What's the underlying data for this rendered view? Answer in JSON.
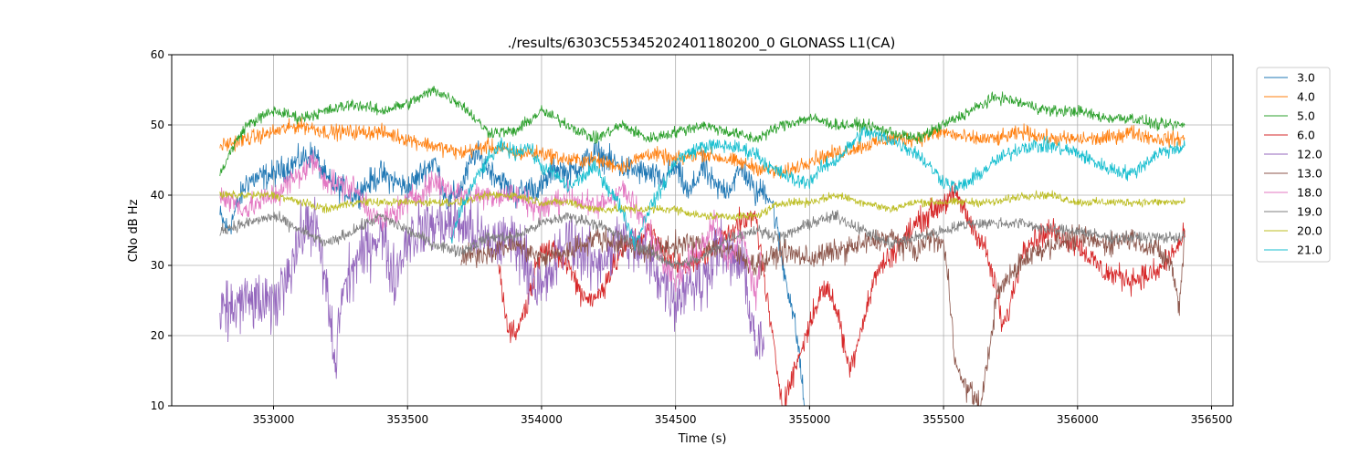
{
  "chart_data": {
    "type": "line",
    "title": "./results/6303C55345202401180200_0 GLONASS L1(CA)",
    "xlabel": "Time (s)",
    "ylabel": "CNo dB Hz",
    "xlim": [
      352620,
      356580
    ],
    "ylim": [
      10,
      60
    ],
    "xticks": [
      353000,
      353500,
      354000,
      354500,
      355000,
      355500,
      356000,
      356500
    ],
    "yticks": [
      10,
      20,
      30,
      40,
      50,
      60
    ],
    "grid": true,
    "legend_position": "right",
    "series": [
      {
        "name": "3.0",
        "color": "#1f77b4",
        "noise": 1.6,
        "x": [
          352800,
          352830,
          352900,
          353000,
          353100,
          353150,
          353200,
          353300,
          353400,
          353500,
          353600,
          353650,
          353700,
          353750,
          353800,
          353850,
          353900,
          353950,
          354000,
          354050,
          354100,
          354200,
          354300,
          354400,
          354450,
          354500,
          354550,
          354600,
          354650,
          354700,
          354750,
          354800,
          354830,
          354860,
          354880,
          354900,
          354930,
          354960,
          354980
        ],
        "y": [
          37,
          35,
          42,
          43,
          45,
          46,
          42,
          40,
          43,
          41,
          45,
          39,
          41,
          46,
          44,
          42,
          40,
          41,
          41,
          44,
          43,
          46,
          44,
          43,
          42,
          44,
          40,
          44,
          41,
          41,
          44,
          40,
          41,
          39,
          35,
          30,
          25,
          18,
          10
        ]
      },
      {
        "name": "4.0",
        "color": "#ff7f0e",
        "noise": 0.9,
        "x": [
          352800,
          352900,
          353000,
          353100,
          353200,
          353300,
          353400,
          353500,
          353600,
          353700,
          353800,
          353900,
          354000,
          354100,
          354200,
          354300,
          354400,
          354500,
          354600,
          354700,
          354800,
          354900,
          355000,
          355100,
          355200,
          355300,
          355400,
          355500,
          355600,
          355700,
          355800,
          355900,
          356000,
          356100,
          356200,
          356300,
          356400
        ],
        "y": [
          47,
          48,
          49,
          50,
          49,
          49,
          49,
          48,
          47,
          46,
          47,
          46,
          46,
          45,
          45,
          44,
          46,
          45,
          46,
          45,
          44,
          43,
          45,
          46,
          47,
          48,
          48,
          49,
          48,
          48,
          49,
          48,
          48,
          48,
          49,
          48,
          48
        ]
      },
      {
        "name": "5.0",
        "color": "#2ca02c",
        "noise": 0.7,
        "x": [
          352800,
          352850,
          352900,
          353000,
          353100,
          353200,
          353300,
          353400,
          353500,
          353600,
          353700,
          353800,
          353900,
          354000,
          354100,
          354200,
          354300,
          354400,
          354500,
          354600,
          354700,
          354800,
          354900,
          355000,
          355100,
          355200,
          355300,
          355400,
          355500,
          355600,
          355700,
          355800,
          355900,
          356000,
          356100,
          356200,
          356300,
          356400
        ],
        "y": [
          43,
          47,
          50,
          52,
          51,
          52,
          53,
          52,
          53,
          55,
          53,
          49,
          49,
          52,
          50,
          48,
          50,
          48,
          49,
          50,
          49,
          48,
          50,
          51,
          50,
          50,
          49,
          48,
          50,
          52,
          54,
          53,
          52,
          52,
          51,
          51,
          50,
          50
        ]
      },
      {
        "name": "6.0",
        "color": "#d62728",
        "noise": 1.5,
        "x": [
          353840,
          353870,
          353900,
          353950,
          354000,
          354100,
          354150,
          354200,
          354300,
          354400,
          354500,
          354600,
          354700,
          354800,
          354860,
          354900,
          355030,
          355060,
          355100,
          355150,
          355170,
          355250,
          355400,
          355500,
          355550,
          355600,
          355650,
          355700,
          355720,
          355740,
          355800,
          355900,
          356000,
          356100,
          356200,
          356300,
          356400
        ],
        "y": [
          30,
          22,
          20,
          25,
          33,
          30,
          26,
          25,
          32,
          35,
          30,
          31,
          35,
          37,
          20,
          10,
          25,
          27,
          24,
          15,
          18,
          29,
          36,
          39,
          40,
          36,
          33,
          26,
          21,
          23,
          33,
          35,
          33,
          29,
          28,
          29,
          34
        ]
      },
      {
        "name": "12.0",
        "color": "#9467bd",
        "noise": 3.5,
        "x": [
          352800,
          352900,
          353000,
          353100,
          353150,
          353200,
          353230,
          353250,
          353300,
          353400,
          353450,
          353500,
          353600,
          353700,
          353800,
          353900,
          354000,
          354100,
          354200,
          354300,
          354400,
          354450,
          354500,
          354550,
          354600,
          354650,
          354700,
          354750,
          354800,
          354830
        ],
        "y": [
          23,
          25,
          24,
          34,
          37,
          26,
          15,
          25,
          30,
          35,
          28,
          34,
          36,
          36,
          33,
          34,
          26,
          34,
          30,
          34,
          31,
          28,
          25,
          28,
          27,
          33,
          31,
          30,
          19,
          18
        ]
      },
      {
        "name": "13.0",
        "color": "#8c564b",
        "noise": 1.4,
        "x": [
          353700,
          353800,
          353900,
          354000,
          354100,
          354200,
          354300,
          354400,
          354500,
          354600,
          354700,
          354800,
          354900,
          355000,
          355100,
          355200,
          355300,
          355400,
          355450,
          355500,
          355520,
          355540,
          355560,
          355640,
          355700,
          355800,
          355900,
          356000,
          356100,
          356200,
          356300,
          356350,
          356380,
          356400
        ],
        "y": [
          31,
          32,
          33,
          31,
          32,
          34,
          33,
          32,
          33,
          33,
          32,
          30,
          32,
          31,
          32,
          33,
          34,
          32,
          34,
          33,
          27,
          18,
          14,
          10,
          26,
          31,
          33,
          34,
          33,
          34,
          32,
          30,
          24,
          35
        ]
      },
      {
        "name": "18.0",
        "color": "#e377c2",
        "noise": 1.6,
        "x": [
          352800,
          352900,
          353000,
          353100,
          353150,
          353200,
          353300,
          353400,
          353500,
          353600,
          353700,
          353800,
          353900,
          354000,
          354100,
          354200,
          354300,
          354400,
          354500,
          354600,
          354650,
          354700,
          354750,
          354800,
          354820
        ],
        "y": [
          40,
          38,
          40,
          43,
          45,
          42,
          41,
          36,
          39,
          42,
          40,
          40,
          40,
          38,
          40,
          38,
          41,
          35,
          28,
          33,
          37,
          30,
          35,
          25,
          32
        ]
      },
      {
        "name": "19.0",
        "color": "#7f7f7f",
        "noise": 0.7,
        "x": [
          352800,
          352900,
          353000,
          353100,
          353200,
          353300,
          353400,
          353500,
          353600,
          353700,
          353800,
          353900,
          354000,
          354100,
          354200,
          354300,
          354400,
          354500,
          354600,
          354700,
          354800,
          354900,
          355000,
          355100,
          355200,
          355300,
          355400,
          355500,
          355600,
          355700,
          355800,
          355900,
          356000,
          356100,
          356200,
          356300,
          356400
        ],
        "y": [
          35,
          36,
          37,
          35,
          33,
          35,
          37,
          35,
          33,
          32,
          34,
          34,
          36,
          37,
          36,
          34,
          32,
          30,
          31,
          34,
          35,
          34,
          36,
          37,
          35,
          33,
          34,
          35,
          36,
          36,
          36,
          35,
          35,
          34,
          34,
          34,
          34
        ]
      },
      {
        "name": "20.0",
        "color": "#bcbd22",
        "noise": 0.5,
        "x": [
          352800,
          352900,
          353000,
          353100,
          353200,
          353300,
          353400,
          353500,
          353600,
          353700,
          353800,
          353900,
          354000,
          354100,
          354200,
          354300,
          354400,
          354500,
          354600,
          354700,
          354800,
          354900,
          355000,
          355100,
          355200,
          355300,
          355400,
          355500,
          355600,
          355700,
          355800,
          355900,
          356000,
          356100,
          356200,
          356300,
          356400
        ],
        "y": [
          40,
          40,
          40,
          39,
          38,
          39,
          39,
          39,
          39,
          39,
          40,
          40,
          39,
          39,
          38,
          38,
          38,
          38,
          37,
          37,
          37,
          39,
          39,
          40,
          39,
          38,
          39,
          39,
          39,
          39,
          40,
          40,
          39,
          39,
          39,
          39,
          39
        ]
      },
      {
        "name": "21.0",
        "color": "#17becf",
        "noise": 0.9,
        "x": [
          353660,
          353700,
          353750,
          353800,
          353850,
          353900,
          353950,
          354000,
          354050,
          354100,
          354200,
          354300,
          354350,
          354400,
          354450,
          354500,
          354600,
          354700,
          354800,
          354850,
          354900,
          354950,
          355000,
          355050,
          355100,
          355200,
          355300,
          355400,
          355500,
          355550,
          355600,
          355700,
          355800,
          355900,
          356000,
          356100,
          356200,
          356300,
          356400
        ],
        "y": [
          33,
          38,
          42,
          45,
          47,
          46,
          47,
          44,
          43,
          41,
          44,
          38,
          33,
          38,
          41,
          45,
          47,
          47,
          46,
          44,
          43,
          42,
          42,
          44,
          45,
          49,
          48,
          46,
          42,
          41,
          42,
          45,
          47,
          47,
          46,
          44,
          43,
          46,
          47
        ]
      }
    ]
  }
}
